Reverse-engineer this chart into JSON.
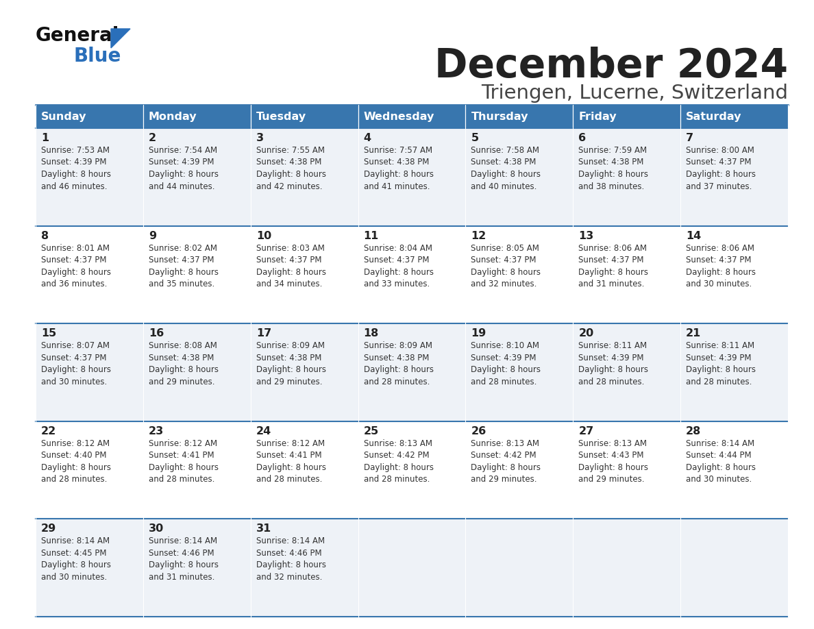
{
  "title": "December 2024",
  "subtitle": "Triengen, Lucerne, Switzerland",
  "header_color": "#3876ae",
  "header_text_color": "#ffffff",
  "row_bg_even": "#eef2f7",
  "row_bg_odd": "#ffffff",
  "border_color": "#3876ae",
  "text_color": "#333333",
  "day_number_color": "#222222",
  "day_headers": [
    "Sunday",
    "Monday",
    "Tuesday",
    "Wednesday",
    "Thursday",
    "Friday",
    "Saturday"
  ],
  "weeks": [
    [
      {
        "day": 1,
        "sunrise": "7:53 AM",
        "sunset": "4:39 PM",
        "daylight": "8 hours\nand 46 minutes."
      },
      {
        "day": 2,
        "sunrise": "7:54 AM",
        "sunset": "4:39 PM",
        "daylight": "8 hours\nand 44 minutes."
      },
      {
        "day": 3,
        "sunrise": "7:55 AM",
        "sunset": "4:38 PM",
        "daylight": "8 hours\nand 42 minutes."
      },
      {
        "day": 4,
        "sunrise": "7:57 AM",
        "sunset": "4:38 PM",
        "daylight": "8 hours\nand 41 minutes."
      },
      {
        "day": 5,
        "sunrise": "7:58 AM",
        "sunset": "4:38 PM",
        "daylight": "8 hours\nand 40 minutes."
      },
      {
        "day": 6,
        "sunrise": "7:59 AM",
        "sunset": "4:38 PM",
        "daylight": "8 hours\nand 38 minutes."
      },
      {
        "day": 7,
        "sunrise": "8:00 AM",
        "sunset": "4:37 PM",
        "daylight": "8 hours\nand 37 minutes."
      }
    ],
    [
      {
        "day": 8,
        "sunrise": "8:01 AM",
        "sunset": "4:37 PM",
        "daylight": "8 hours\nand 36 minutes."
      },
      {
        "day": 9,
        "sunrise": "8:02 AM",
        "sunset": "4:37 PM",
        "daylight": "8 hours\nand 35 minutes."
      },
      {
        "day": 10,
        "sunrise": "8:03 AM",
        "sunset": "4:37 PM",
        "daylight": "8 hours\nand 34 minutes."
      },
      {
        "day": 11,
        "sunrise": "8:04 AM",
        "sunset": "4:37 PM",
        "daylight": "8 hours\nand 33 minutes."
      },
      {
        "day": 12,
        "sunrise": "8:05 AM",
        "sunset": "4:37 PM",
        "daylight": "8 hours\nand 32 minutes."
      },
      {
        "day": 13,
        "sunrise": "8:06 AM",
        "sunset": "4:37 PM",
        "daylight": "8 hours\nand 31 minutes."
      },
      {
        "day": 14,
        "sunrise": "8:06 AM",
        "sunset": "4:37 PM",
        "daylight": "8 hours\nand 30 minutes."
      }
    ],
    [
      {
        "day": 15,
        "sunrise": "8:07 AM",
        "sunset": "4:37 PM",
        "daylight": "8 hours\nand 30 minutes."
      },
      {
        "day": 16,
        "sunrise": "8:08 AM",
        "sunset": "4:38 PM",
        "daylight": "8 hours\nand 29 minutes."
      },
      {
        "day": 17,
        "sunrise": "8:09 AM",
        "sunset": "4:38 PM",
        "daylight": "8 hours\nand 29 minutes."
      },
      {
        "day": 18,
        "sunrise": "8:09 AM",
        "sunset": "4:38 PM",
        "daylight": "8 hours\nand 28 minutes."
      },
      {
        "day": 19,
        "sunrise": "8:10 AM",
        "sunset": "4:39 PM",
        "daylight": "8 hours\nand 28 minutes."
      },
      {
        "day": 20,
        "sunrise": "8:11 AM",
        "sunset": "4:39 PM",
        "daylight": "8 hours\nand 28 minutes."
      },
      {
        "day": 21,
        "sunrise": "8:11 AM",
        "sunset": "4:39 PM",
        "daylight": "8 hours\nand 28 minutes."
      }
    ],
    [
      {
        "day": 22,
        "sunrise": "8:12 AM",
        "sunset": "4:40 PM",
        "daylight": "8 hours\nand 28 minutes."
      },
      {
        "day": 23,
        "sunrise": "8:12 AM",
        "sunset": "4:41 PM",
        "daylight": "8 hours\nand 28 minutes."
      },
      {
        "day": 24,
        "sunrise": "8:12 AM",
        "sunset": "4:41 PM",
        "daylight": "8 hours\nand 28 minutes."
      },
      {
        "day": 25,
        "sunrise": "8:13 AM",
        "sunset": "4:42 PM",
        "daylight": "8 hours\nand 28 minutes."
      },
      {
        "day": 26,
        "sunrise": "8:13 AM",
        "sunset": "4:42 PM",
        "daylight": "8 hours\nand 29 minutes."
      },
      {
        "day": 27,
        "sunrise": "8:13 AM",
        "sunset": "4:43 PM",
        "daylight": "8 hours\nand 29 minutes."
      },
      {
        "day": 28,
        "sunrise": "8:14 AM",
        "sunset": "4:44 PM",
        "daylight": "8 hours\nand 30 minutes."
      }
    ],
    [
      {
        "day": 29,
        "sunrise": "8:14 AM",
        "sunset": "4:45 PM",
        "daylight": "8 hours\nand 30 minutes."
      },
      {
        "day": 30,
        "sunrise": "8:14 AM",
        "sunset": "4:46 PM",
        "daylight": "8 hours\nand 31 minutes."
      },
      {
        "day": 31,
        "sunrise": "8:14 AM",
        "sunset": "4:46 PM",
        "daylight": "8 hours\nand 32 minutes."
      },
      null,
      null,
      null,
      null
    ]
  ],
  "logo_general_color": "#111111",
  "logo_blue_color": "#2a6fba",
  "logo_triangle_color": "#2a6fba"
}
